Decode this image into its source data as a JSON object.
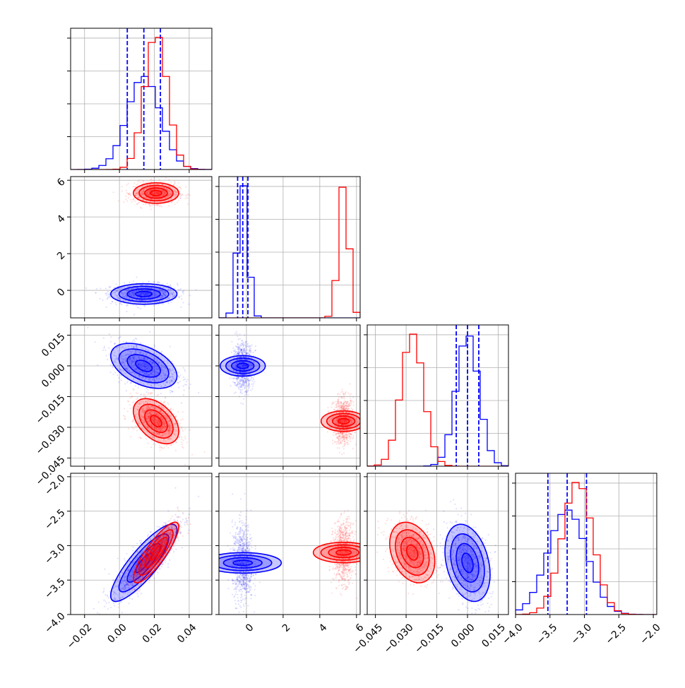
{
  "chart_data": {
    "type": "corner",
    "parameters": [
      {
        "range": [
          -0.028,
          0.053
        ],
        "ticks": [
          -0.02,
          0.0,
          0.02,
          0.04
        ],
        "tick_labels": [
          "−0.02",
          "0.00",
          "0.02",
          "0.04"
        ]
      },
      {
        "range": [
          -1.5,
          6.2
        ],
        "ticks": [
          0,
          2,
          4,
          6
        ],
        "tick_labels": [
          "0",
          "2",
          "4",
          "6"
        ]
      },
      {
        "range": [
          -0.049,
          0.02
        ],
        "ticks": [
          -0.045,
          -0.03,
          -0.015,
          0.0,
          0.015
        ],
        "tick_labels": [
          "−0.045",
          "−0.030",
          "−0.015",
          "0.000",
          "0.015"
        ]
      },
      {
        "range": [
          -4.0,
          -1.95
        ],
        "ticks": [
          -4.0,
          -3.5,
          -3.0,
          -2.5,
          -2.0
        ],
        "tick_labels": [
          "−4.0",
          "−3.5",
          "−3.0",
          "−2.5",
          "−2.0"
        ]
      }
    ],
    "series": [
      {
        "color": "#0000ff",
        "means": [
          0.014,
          -0.2,
          0.0,
          -3.25
        ],
        "sigmas": [
          0.0095,
          0.28,
          0.0055,
          0.28
        ],
        "quantile_lines": true
      },
      {
        "color": "#ff0000",
        "means": [
          0.021,
          5.3,
          -0.027,
          -3.1
        ],
        "sigmas": [
          0.0065,
          0.28,
          0.0055,
          0.22
        ],
        "quantile_lines": false
      }
    ],
    "correlations": {
      "0-2": -0.45,
      "0-3": 0.85,
      "2-3": -0.3
    },
    "quantiles": [
      0.16,
      0.5,
      0.84
    ],
    "grid": true,
    "title": "",
    "xlabel": "",
    "ylabel": ""
  }
}
